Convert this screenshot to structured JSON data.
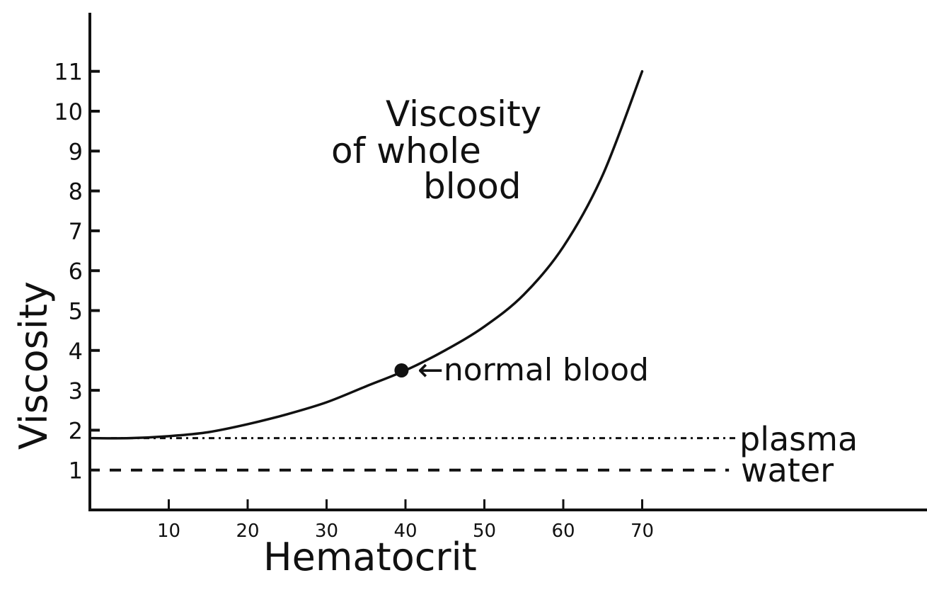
{
  "chart_data": {
    "type": "line",
    "title": "",
    "xlabel": "Hematocrit",
    "ylabel": "Viscosity",
    "xlim": [
      0,
      105
    ],
    "ylim": [
      0,
      11.5
    ],
    "grid": false,
    "legend": "inline labels at line ends",
    "x_ticks": [
      10,
      20,
      30,
      40,
      50,
      60,
      70
    ],
    "x_tick_labels": [
      "10",
      "20",
      "30",
      "40",
      "50",
      "60",
      "70"
    ],
    "y_ticks": [
      1,
      2,
      3,
      4,
      5,
      6,
      7,
      8,
      9,
      10,
      11
    ],
    "y_tick_labels": [
      "1",
      "2",
      "3",
      "4",
      "5",
      "6",
      "7",
      "8",
      "9",
      "10",
      "11"
    ],
    "series": [
      {
        "name": "Viscosity of whole blood",
        "label_lines": [
          "Viscosity",
          "of whole",
          "blood"
        ],
        "style": "solid",
        "x": [
          0,
          5,
          10,
          15,
          20,
          25,
          30,
          35,
          40,
          45,
          50,
          55,
          60,
          65,
          70
        ],
        "y": [
          1.8,
          1.8,
          1.85,
          1.95,
          2.15,
          2.4,
          2.7,
          3.1,
          3.5,
          4.0,
          4.6,
          5.4,
          6.6,
          8.4,
          11.0
        ]
      },
      {
        "name": "plasma",
        "style": "dotted",
        "x": [
          0,
          82
        ],
        "y": [
          1.8,
          1.8
        ]
      },
      {
        "name": "water",
        "style": "dashed",
        "x": [
          0,
          81
        ],
        "y": [
          1.0,
          1.0
        ]
      }
    ],
    "annotations": [
      {
        "text": "normal blood",
        "x": 39.5,
        "y": 3.5,
        "marker": "filled-dot",
        "arrow": "left-pointing"
      }
    ]
  },
  "labels": {
    "curve_label": [
      "Viscosity",
      "of whole",
      "blood"
    ],
    "normal_blood": "←normal blood",
    "plasma": "plasma",
    "water": "water",
    "x_axis": "Hematocrit",
    "y_axis": "Viscosity"
  },
  "colors": {
    "ink": "#111111",
    "background": "#ffffff"
  }
}
